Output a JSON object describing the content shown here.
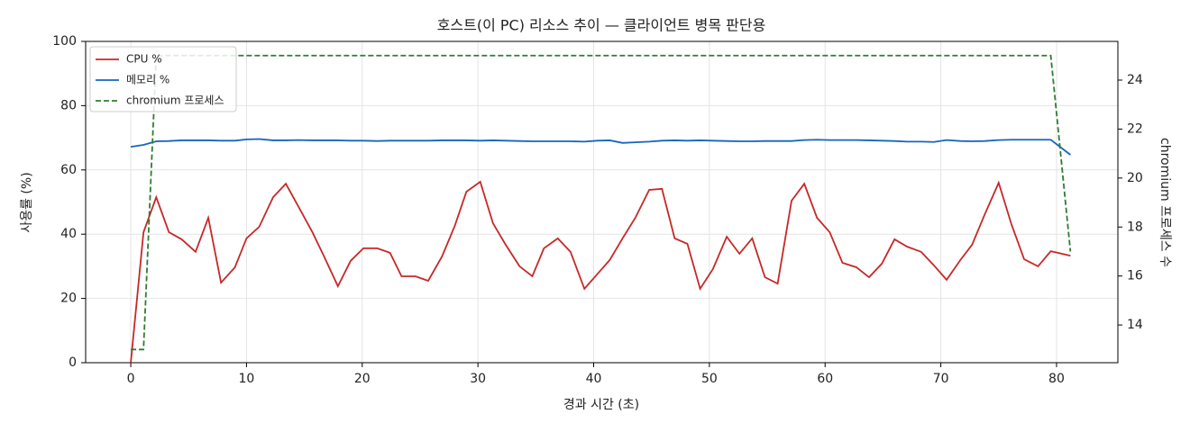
{
  "chart_data": {
    "type": "line",
    "title": "호스트(이 PC) 리소스 추이 — 클라이언트 병목 판단용",
    "xlabel": "경과 시간 (초)",
    "ylabel": "사용률 (%)",
    "y2label": "chromium 프로세스 수",
    "x": [
      0,
      1.1,
      2.2,
      3.3,
      4.4,
      5.6,
      6.7,
      7.8,
      9.0,
      10.0,
      11.1,
      12.3,
      13.4,
      14.5,
      15.7,
      16.7,
      17.9,
      19.0,
      20.1,
      21.3,
      22.4,
      23.4,
      24.6,
      25.7,
      26.9,
      28.0,
      29.0,
      30.2,
      31.3,
      32.4,
      33.6,
      34.7,
      35.7,
      36.9,
      38.0,
      39.2,
      40.3,
      41.4,
      42.5,
      43.6,
      44.8,
      45.9,
      47.0,
      48.1,
      49.2,
      50.3,
      51.5,
      52.6,
      53.7,
      54.8,
      55.9,
      57.1,
      58.2,
      59.3,
      60.4,
      61.5,
      62.7,
      63.8,
      64.9,
      66.0,
      67.1,
      68.3,
      69.4,
      70.5,
      71.7,
      72.7,
      73.8,
      75.0,
      76.1,
      77.2,
      78.4,
      79.5,
      81.2
    ],
    "series": [
      {
        "name": "CPU %",
        "color": "#c62828",
        "linestyle": "solid",
        "values": [
          0,
          40.6,
          51.5,
          40.6,
          38.4,
          34.5,
          45.1,
          24.9,
          29.7,
          38.7,
          42.3,
          51.5,
          55.7,
          48.5,
          40.6,
          33.1,
          23.8,
          31.7,
          35.6,
          35.6,
          34.2,
          26.9,
          26.9,
          25.5,
          33.1,
          42.6,
          53.2,
          56.3,
          43.4,
          36.7,
          30.0,
          26.9,
          35.6,
          38.7,
          34.5,
          23.0,
          27.5,
          32.0,
          38.7,
          45.1,
          53.8,
          54.1,
          38.7,
          37.0,
          23.0,
          29.1,
          39.2,
          33.9,
          38.7,
          26.6,
          24.6,
          50.4,
          55.7,
          45.1,
          40.6,
          31.1,
          29.7,
          26.6,
          30.8,
          38.4,
          36.1,
          34.5,
          30.3,
          25.8,
          32.0,
          36.7,
          46.2,
          56.0,
          43.1,
          32.2,
          30.0,
          34.7,
          33.3
        ]
      },
      {
        "name": "메모리 %",
        "color": "#1565c0",
        "linestyle": "solid",
        "values": [
          67.2,
          67.8,
          68.9,
          69.0,
          69.2,
          69.2,
          69.2,
          69.1,
          69.1,
          69.5,
          69.6,
          69.2,
          69.2,
          69.3,
          69.2,
          69.2,
          69.2,
          69.1,
          69.1,
          69.0,
          69.1,
          69.1,
          69.1,
          69.1,
          69.2,
          69.2,
          69.2,
          69.1,
          69.2,
          69.1,
          69.0,
          68.9,
          68.9,
          68.9,
          68.9,
          68.8,
          69.1,
          69.2,
          68.4,
          68.6,
          68.8,
          69.1,
          69.2,
          69.1,
          69.2,
          69.1,
          69.0,
          68.9,
          68.9,
          69.0,
          69.0,
          69.0,
          69.3,
          69.4,
          69.3,
          69.3,
          69.3,
          69.2,
          69.1,
          69.0,
          68.8,
          68.8,
          68.7,
          69.3,
          69.0,
          68.9,
          69.0,
          69.3,
          69.4,
          69.4,
          69.4,
          69.4,
          64.7
        ]
      },
      {
        "name": "chromium 프로세스",
        "color": "#2e7d32",
        "linestyle": "dashed",
        "axis": "y2",
        "values": [
          13,
          13,
          25,
          25,
          25,
          25,
          25,
          25,
          25,
          25,
          25,
          25,
          25,
          25,
          25,
          25,
          25,
          25,
          25,
          25,
          25,
          25,
          25,
          25,
          25,
          25,
          25,
          25,
          25,
          25,
          25,
          25,
          25,
          25,
          25,
          25,
          25,
          25,
          25,
          25,
          25,
          25,
          25,
          25,
          25,
          25,
          25,
          25,
          25,
          25,
          25,
          25,
          25,
          25,
          25,
          25,
          25,
          25,
          25,
          25,
          25,
          25,
          25,
          25,
          25,
          25,
          25,
          25,
          25,
          25,
          25,
          25,
          17
        ]
      }
    ],
    "xlim": [
      -3.9,
      85.3
    ],
    "xticks": [
      0,
      10,
      20,
      30,
      40,
      50,
      60,
      70,
      80
    ],
    "ylim": [
      0,
      100
    ],
    "yticks": [
      0,
      20,
      40,
      60,
      80,
      100
    ],
    "y2lim": [
      12.46,
      25.58
    ],
    "y2ticks": [
      14,
      16,
      18,
      20,
      22,
      24
    ],
    "grid": true,
    "legend": "upper-left"
  }
}
